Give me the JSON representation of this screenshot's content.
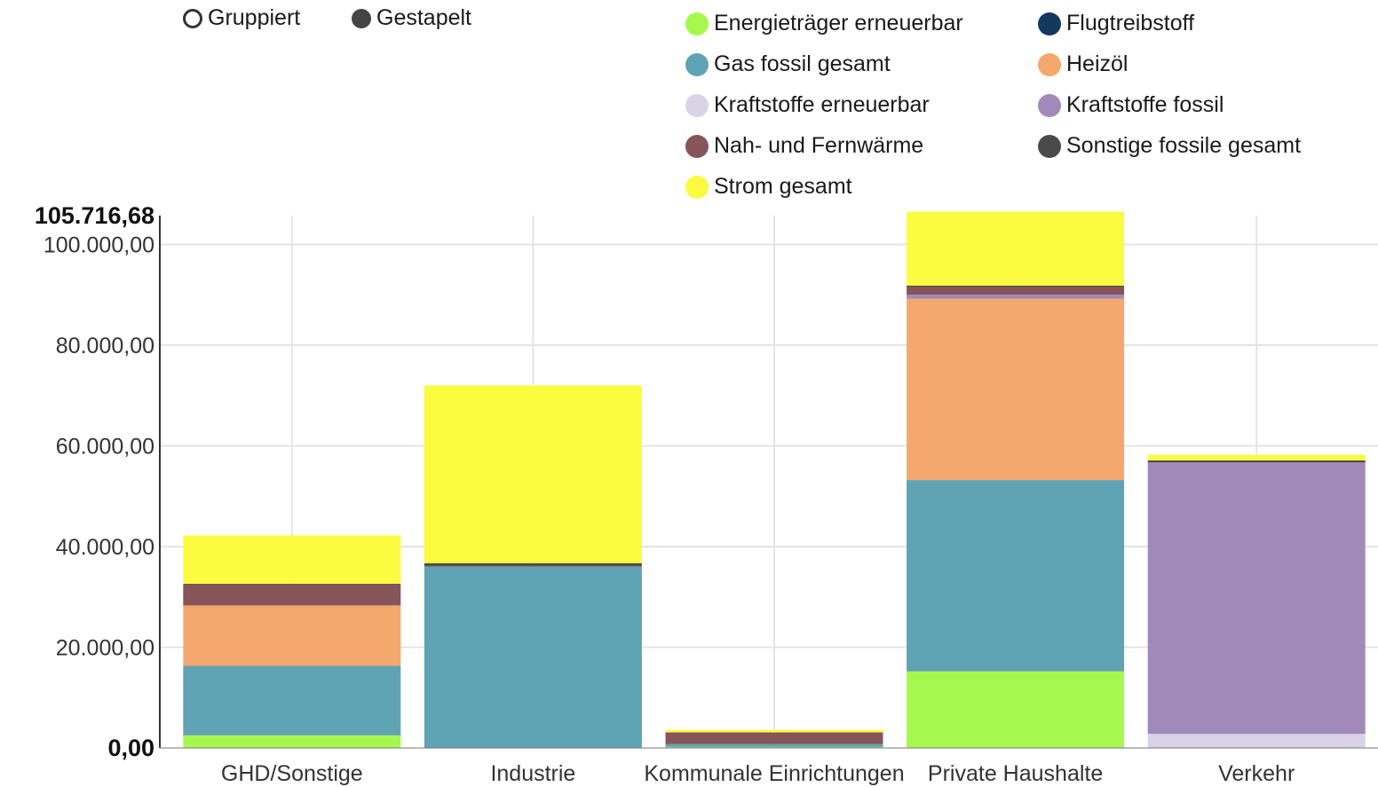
{
  "controls": {
    "grouped_label": "Gruppiert",
    "stacked_label": "Gestapelt"
  },
  "chart_data": {
    "type": "bar",
    "stacked": true,
    "categories": [
      "GHD/Sonstige",
      "Industrie",
      "Kommunale Einrichtungen",
      "Private Haushalte",
      "Verkehr"
    ],
    "y_max_label": "105.716,68",
    "y_zero_label": "0,00",
    "y_ticks": [
      {
        "value": 20000,
        "label": "20.000,00"
      },
      {
        "value": 40000,
        "label": "40.000,00"
      },
      {
        "value": 60000,
        "label": "60.000,00"
      },
      {
        "value": 80000,
        "label": "80.000,00"
      },
      {
        "value": 100000,
        "label": "100.000,00"
      }
    ],
    "ylim": [
      0,
      105716.68
    ],
    "grid": true,
    "legend_position": "top-right",
    "series": [
      {
        "name": "Energieträger erneuerbar",
        "color": "#a6f84f",
        "values": [
          2500,
          0,
          200,
          15200,
          0
        ]
      },
      {
        "name": "Flugtreibstoff",
        "color": "#14375e",
        "values": [
          0,
          0,
          0,
          0,
          0
        ]
      },
      {
        "name": "Gas fossil gesamt",
        "color": "#5fa3b4",
        "values": [
          13800,
          36000,
          600,
          38000,
          0
        ]
      },
      {
        "name": "Heizöl",
        "color": "#f4a86d",
        "values": [
          12000,
          0,
          0,
          36000,
          0
        ]
      },
      {
        "name": "Kraftstoffe erneuerbar",
        "color": "#dad2e6",
        "values": [
          0,
          0,
          0,
          0,
          2800
        ]
      },
      {
        "name": "Kraftstoffe fossil",
        "color": "#a18ab9",
        "values": [
          0,
          0,
          0,
          800,
          53900
        ]
      },
      {
        "name": "Nah- und Fernwärme",
        "color": "#875459",
        "values": [
          4200,
          200,
          2300,
          1500,
          0
        ]
      },
      {
        "name": "Sonstige fossile gesamt",
        "color": "#4a4a4a",
        "values": [
          100,
          500,
          0,
          300,
          400
        ]
      },
      {
        "name": "Strom gesamt",
        "color": "#fbfb3f",
        "values": [
          9600,
          35300,
          500,
          14700,
          1100
        ]
      }
    ]
  }
}
